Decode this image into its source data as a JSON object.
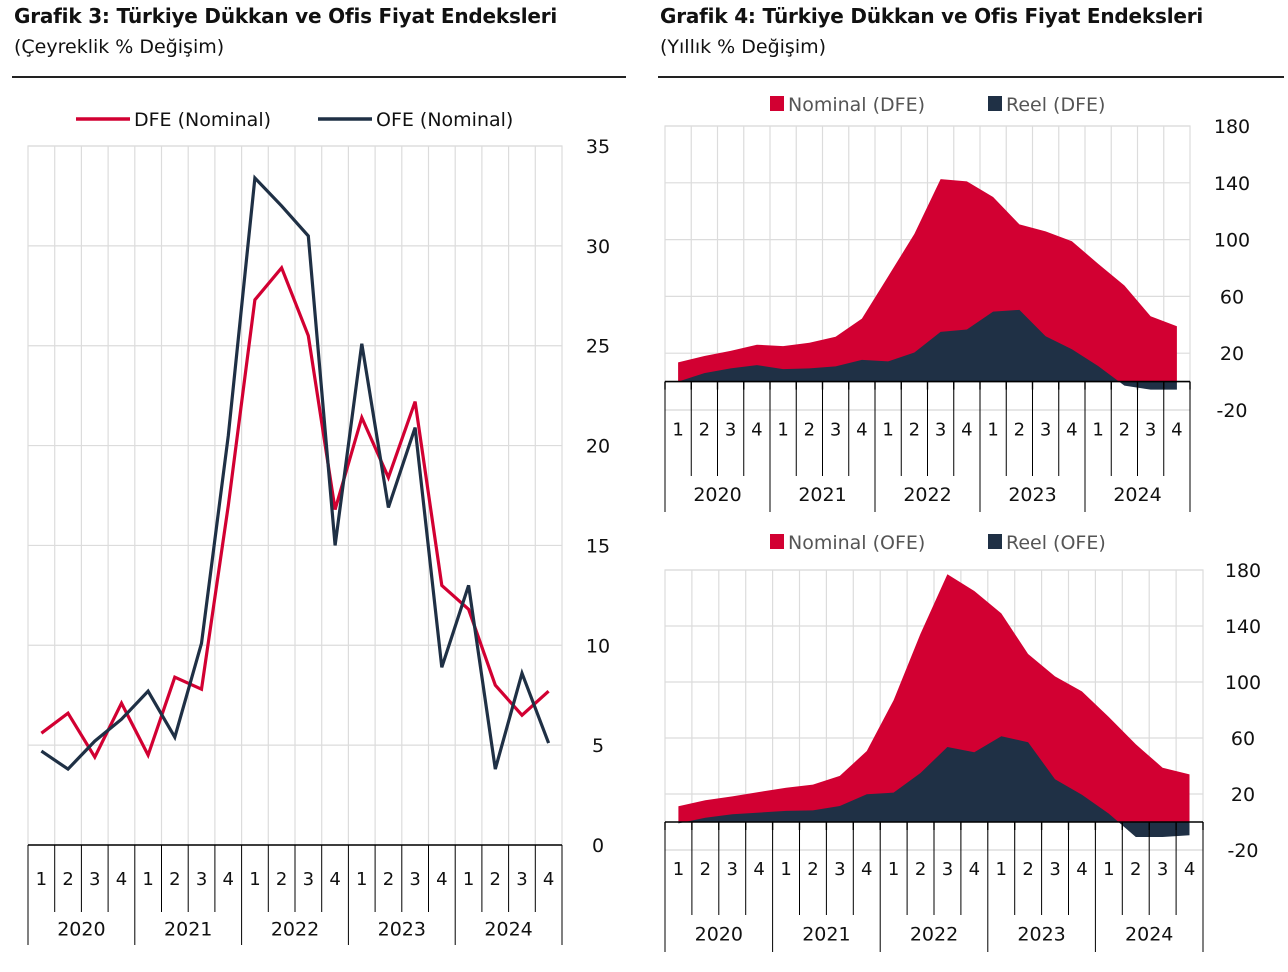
{
  "colors": {
    "red": "#D20032",
    "navy": "#1F3045",
    "grid": "#DCDCDC",
    "axis": "#000000"
  },
  "chart_data": [
    {
      "id": "grafik3",
      "type": "line",
      "title": "Grafik 3: Türkiye Dükkan ve Ofis Fiyat Endeksleri",
      "subtitle": "(Çeyreklik % Değişim)",
      "xlabel": "",
      "ylabel": "",
      "years": [
        "2020",
        "2021",
        "2022",
        "2023",
        "2024"
      ],
      "quarter_labels": [
        "1",
        "2",
        "3",
        "4"
      ],
      "ylim": [
        0,
        35
      ],
      "yticks": [
        0,
        5,
        10,
        15,
        20,
        25,
        30,
        35
      ],
      "yaxis_side": "right",
      "grid": true,
      "legend_position": "top-center",
      "series": [
        {
          "name": "DFE (Nominal)",
          "color": "#D20032",
          "values": [
            5.6,
            6.6,
            4.4,
            7.1,
            4.5,
            8.4,
            7.8,
            17.0,
            27.3,
            28.9,
            25.5,
            16.8,
            21.4,
            18.4,
            22.2,
            13.0,
            11.8,
            8.0,
            6.5,
            7.7
          ]
        },
        {
          "name": "OFE (Nominal)",
          "color": "#1F3045",
          "values": [
            4.7,
            3.8,
            5.2,
            6.3,
            7.7,
            5.4,
            10.1,
            20.5,
            33.4,
            32.0,
            30.5,
            15.0,
            25.1,
            16.9,
            20.9,
            8.9,
            13.0,
            3.8,
            8.6,
            5.1
          ]
        }
      ]
    },
    {
      "id": "grafik4-dfe",
      "type": "area",
      "title": "Grafik 4: Türkiye Dükkan ve Ofis Fiyat Endeksleri",
      "subtitle": "(Yıllık % Değişim)",
      "years": [
        "2020",
        "2021",
        "2022",
        "2023",
        "2024"
      ],
      "quarter_labels": [
        "1",
        "2",
        "3",
        "4"
      ],
      "ylim": [
        -20,
        180
      ],
      "yticks": [
        -20,
        20,
        60,
        100,
        140,
        180
      ],
      "yaxis_side": "right",
      "grid": true,
      "legend_position": "top-center",
      "series": [
        {
          "name": "Nominal (DFE)",
          "color": "#D20032",
          "values": [
            13.5,
            18.0,
            21.6,
            26.0,
            25.0,
            27.4,
            31.6,
            44.4,
            74.0,
            104.0,
            142.6,
            141.0,
            130.0,
            110.7,
            105.8,
            98.8,
            83.0,
            67.7,
            46.0,
            39.0
          ]
        },
        {
          "name": "Reel (DFE)",
          "color": "#1F3045",
          "values": [
            0.0,
            6.0,
            9.3,
            11.6,
            8.8,
            9.3,
            10.7,
            15.3,
            14.2,
            20.5,
            35.0,
            36.7,
            49.3,
            50.5,
            32.0,
            22.8,
            11.0,
            -2.8,
            -5.6,
            -5.6
          ]
        }
      ]
    },
    {
      "id": "grafik4-ofe",
      "type": "area",
      "years": [
        "2020",
        "2021",
        "2022",
        "2023",
        "2024"
      ],
      "quarter_labels": [
        "1",
        "2",
        "3",
        "4"
      ],
      "ylim": [
        -20,
        180
      ],
      "yticks": [
        -20,
        20,
        60,
        100,
        140,
        180
      ],
      "yaxis_side": "right",
      "grid": true,
      "legend_position": "top-center",
      "series": [
        {
          "name": "Nominal (OFE)",
          "color": "#D20032",
          "values": [
            11.2,
            15.5,
            18.3,
            21.4,
            24.5,
            26.7,
            32.9,
            50.7,
            87.0,
            134.5,
            177.0,
            165.0,
            149.0,
            120.0,
            104.0,
            93.3,
            75.0,
            55.5,
            38.8,
            34.0
          ]
        },
        {
          "name": "Reel (OFE)",
          "color": "#1F3045",
          "values": [
            -1.0,
            3.0,
            5.5,
            6.7,
            7.9,
            8.3,
            11.4,
            19.8,
            21.0,
            35.0,
            53.6,
            49.8,
            61.2,
            57.0,
            30.5,
            19.5,
            6.0,
            -10.7,
            -10.7,
            -9.5
          ]
        }
      ]
    }
  ]
}
